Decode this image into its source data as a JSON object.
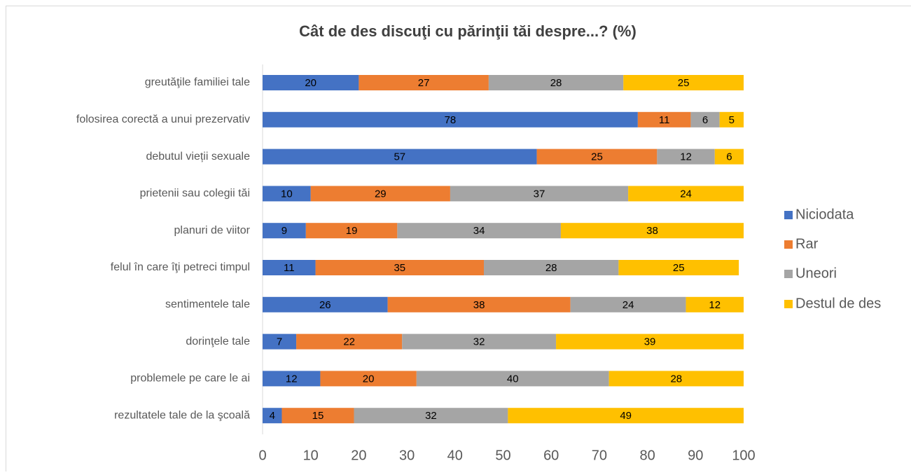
{
  "chart_data": {
    "type": "stacked-bar-horizontal",
    "title": "Cât de des discuţi cu părinţii tăi despre...? (%)",
    "categories": [
      "greutăţile familiei tale",
      "folosirea corectă a unui prezervativ",
      "debutul vieții sexuale",
      "prietenii sau colegii tăi",
      "planuri de viitor",
      "felul în care îţi petreci timpul",
      "sentimentele tale",
      "dorinţele tale",
      "problemele pe care le ai",
      "rezultatele tale de la şcoală"
    ],
    "series": [
      {
        "name": "Niciodata",
        "color": "#4472c4",
        "values": [
          20,
          78,
          57,
          10,
          9,
          11,
          26,
          7,
          12,
          4
        ]
      },
      {
        "name": "Rar",
        "color": "#ed7d31",
        "values": [
          27,
          11,
          25,
          29,
          19,
          35,
          38,
          22,
          20,
          15
        ]
      },
      {
        "name": "Uneori",
        "color": "#a5a5a5",
        "values": [
          28,
          6,
          12,
          37,
          34,
          28,
          24,
          32,
          40,
          32
        ]
      },
      {
        "name": "Destul de des",
        "color": "#ffc000",
        "values": [
          25,
          5,
          6,
          24,
          38,
          25,
          12,
          39,
          28,
          49
        ]
      }
    ],
    "xlim": [
      0,
      100
    ],
    "xticks": [
      0,
      10,
      20,
      30,
      40,
      50,
      60,
      70,
      80,
      90,
      100
    ],
    "legend": "right"
  }
}
